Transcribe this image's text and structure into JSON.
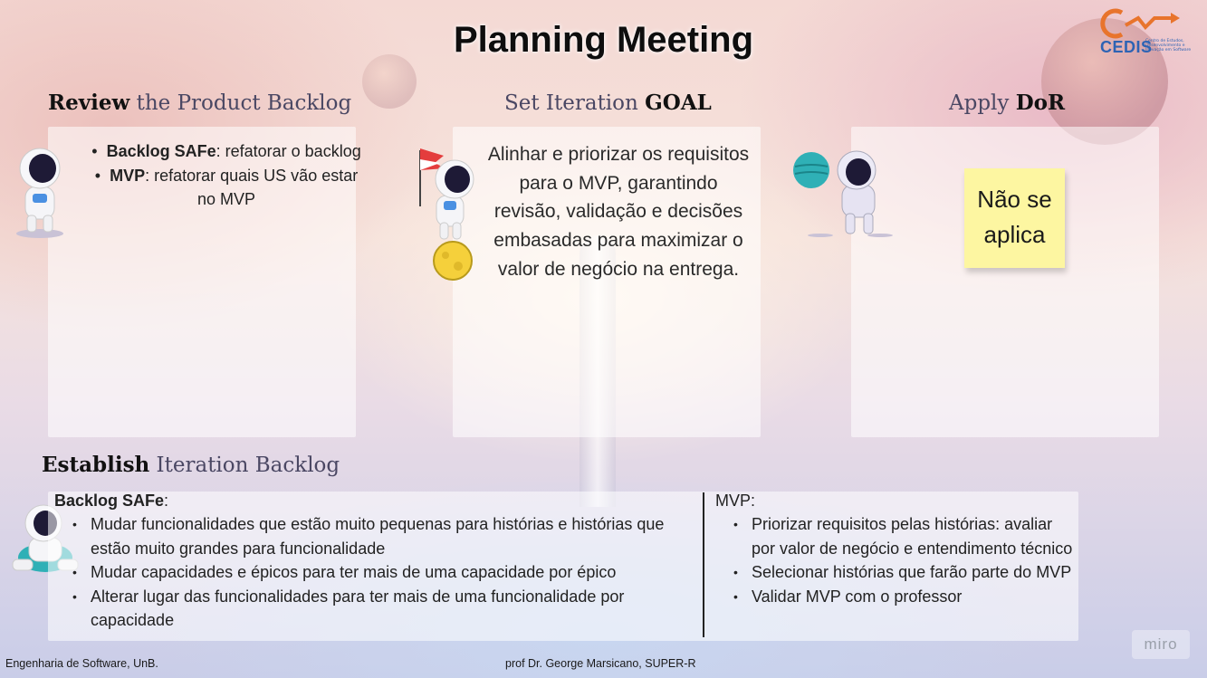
{
  "title": "Planning Meeting",
  "logo": {
    "name": "CEDIS",
    "tagline": "Centro de Estudos, Desenvolvimento e Inovação em Software"
  },
  "review": {
    "heading_bold": "Review",
    "heading_rest": " the Product Backlog",
    "items": [
      {
        "bold": "Backlog SAFe",
        "text": ": refatorar o backlog"
      },
      {
        "bold": "MVP",
        "text": ": refatorar quais US vão estar no MVP"
      }
    ]
  },
  "goal": {
    "heading_rest": "Set Iteration ",
    "heading_bold": "GOAL",
    "text": "Alinhar e priorizar os requisitos para o MVP, garantindo revisão, validação e decisões embasadas para maximizar o valor de negócio na entrega."
  },
  "dor": {
    "heading_rest": "Apply ",
    "heading_bold": "DoR",
    "sticky": "Não se aplica"
  },
  "establish": {
    "heading_bold": "Establish",
    "heading_rest": " Iteration Backlog",
    "safe_label": "Backlog SAFe",
    "safe_colon": ":",
    "safe_items": [
      "Mudar funcionalidades que estão muito pequenas para histórias e histórias que estão muito grandes para funcionalidade",
      "Mudar capacidades e épicos para ter mais de uma capacidade por épico",
      "Alterar lugar das funcionalidades para ter mais de uma funcionalidade por capacidade"
    ],
    "mvp_label": "MVP:",
    "mvp_items": [
      "Priorizar requisitos pelas histórias: avaliar por valor de negócio e entendimento técnico",
      "Selecionar histórias que farão parte do MVP",
      "Validar MVP com o professor"
    ]
  },
  "footer": {
    "left": "Engenharia de Software, UnB.",
    "center": "prof Dr. George Marsicano, SUPER-R"
  },
  "watermark": "miro"
}
